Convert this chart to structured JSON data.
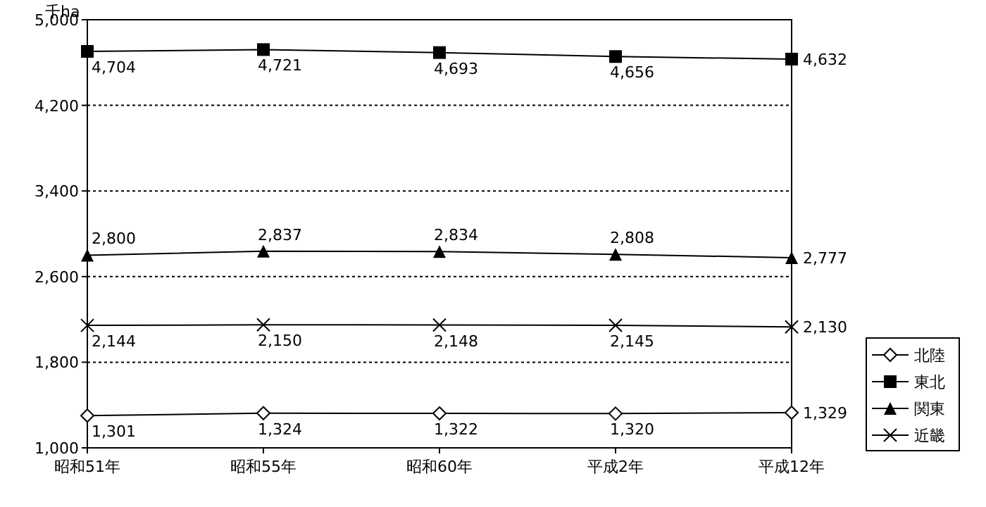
{
  "chart_data": {
    "type": "line",
    "ylabel": "千ha",
    "categories": [
      "昭和51年",
      "昭和55年",
      "昭和60年",
      "平成2年",
      "平成12年"
    ],
    "ylim": [
      1000,
      5000
    ],
    "yticks": [
      {
        "value": 1000,
        "label": "1,000"
      },
      {
        "value": 1800,
        "label": "1,800"
      },
      {
        "value": 2600,
        "label": "2,600"
      },
      {
        "value": 3400,
        "label": "3,400"
      },
      {
        "value": 4200,
        "label": "4,200"
      },
      {
        "value": 5000,
        "label": "5,000"
      }
    ],
    "grid": "y",
    "legend": "right",
    "series": [
      {
        "name": "北陸",
        "color": "#000000",
        "marker": "diamond",
        "values": [
          1301,
          1324,
          1322,
          1320,
          1329
        ],
        "value_labels": [
          "1,301",
          "1,324",
          "1,322",
          "1,320",
          "1,329"
        ]
      },
      {
        "name": "東北",
        "color": "#000000",
        "marker": "square",
        "values": [
          4704,
          4721,
          4693,
          4656,
          4632
        ],
        "value_labels": [
          "4,704",
          "4,721",
          "4,693",
          "4,656",
          "4,632"
        ]
      },
      {
        "name": "関東",
        "color": "#000000",
        "marker": "triangle",
        "values": [
          2800,
          2837,
          2834,
          2808,
          2777
        ],
        "value_labels": [
          "2,800",
          "2,837",
          "2,834",
          "2,808",
          "2,777"
        ]
      },
      {
        "name": "近畿",
        "color": "#000000",
        "marker": "cross",
        "values": [
          2144,
          2150,
          2148,
          2145,
          2130
        ],
        "value_labels": [
          "2,144",
          "2,150",
          "2,148",
          "2,145",
          "2,130"
        ]
      }
    ]
  }
}
